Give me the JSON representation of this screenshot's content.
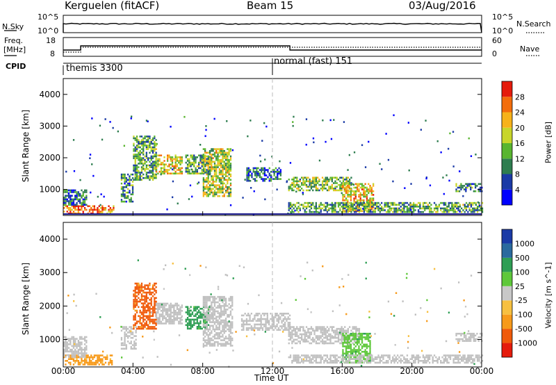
{
  "header": {
    "station": "Kerguelen (fitACF)",
    "beam": "Beam 15",
    "date": "03/Aug/2016"
  },
  "noise_panel": {
    "left_label": "N.Sky",
    "right_label": "N.Search",
    "left_ticks": [
      "10^5",
      "10^0"
    ],
    "right_ticks": [
      "10^5",
      "10^0"
    ]
  },
  "freq_panel": {
    "left_label_1": "Freq.",
    "left_label_2": "[MHz]",
    "right_label": "Nave",
    "left_ticks": [
      "18",
      "8"
    ],
    "right_ticks": [
      "60",
      "0"
    ]
  },
  "cpid_panel": {
    "label": "CPID",
    "modes": [
      "themis 3300",
      "normal (fast) 151"
    ]
  },
  "colors": {
    "power_scale": [
      "#0000ff",
      "#1a3aa6",
      "#2e7d4f",
      "#59b530",
      "#c8d62a",
      "#f7b21a",
      "#f36d0c",
      "#e51b0c"
    ],
    "velocity_scale": [
      "#e51b0c",
      "#f05a0a",
      "#f79a1a",
      "#f7c040",
      "#c8c8c8",
      "#5ec83a",
      "#2e9e54",
      "#2a6a9e",
      "#1a3aa6"
    ],
    "ground_scatter": "#c0c0c0"
  },
  "chart_data": [
    {
      "type": "heatmap",
      "title": "Power",
      "xlabel": "",
      "ylabel": "Slant Range [km]",
      "x_range_hours": [
        0,
        24
      ],
      "ylim": [
        180,
        4500
      ],
      "yticks": [
        "1000",
        "2000",
        "3000",
        "4000"
      ],
      "colorbar": {
        "label": "Power [dB]",
        "ticks": [
          "4",
          "8",
          "12",
          "16",
          "20",
          "24",
          "28"
        ],
        "range": [
          0,
          30
        ]
      },
      "features": [
        {
          "x": [
            0.0,
            2.9
          ],
          "y": [
            250,
            500
          ],
          "value": 24
        },
        {
          "x": [
            0.0,
            1.3
          ],
          "y": [
            500,
            1000
          ],
          "value": 8
        },
        {
          "x": [
            3.3,
            4.0
          ],
          "y": [
            600,
            1500
          ],
          "value": 10
        },
        {
          "x": [
            4.0,
            5.3
          ],
          "y": [
            1300,
            2700
          ],
          "value": 12
        },
        {
          "x": [
            5.3,
            6.8
          ],
          "y": [
            1500,
            2100
          ],
          "value": 18
        },
        {
          "x": [
            7.0,
            8.4
          ],
          "y": [
            1500,
            2100
          ],
          "value": 12
        },
        {
          "x": [
            8.0,
            9.6
          ],
          "y": [
            800,
            2300
          ],
          "value": 16
        },
        {
          "x": [
            10.5,
            12.5
          ],
          "y": [
            1300,
            1700
          ],
          "value": 8
        },
        {
          "x": [
            12.9,
            16.5
          ],
          "y": [
            1000,
            1400
          ],
          "value": 14
        },
        {
          "x": [
            16.0,
            17.8
          ],
          "y": [
            300,
            1200
          ],
          "value": 20
        },
        {
          "x": [
            12.9,
            24.0
          ],
          "y": [
            280,
            600
          ],
          "value": 12
        },
        {
          "x": [
            22.5,
            24.0
          ],
          "y": [
            950,
            1200
          ],
          "value": 10
        }
      ]
    },
    {
      "type": "heatmap",
      "title": "Velocity",
      "xlabel": "Time UT",
      "ylabel": "Slant Range [km]",
      "x_range_hours": [
        0,
        24
      ],
      "ylim": [
        180,
        4500
      ],
      "xticks": [
        "00:00",
        "04:00",
        "08:00",
        "12:00",
        "16:00",
        "20:00",
        "00:00"
      ],
      "yticks": [
        "1000",
        "2000",
        "3000",
        "4000"
      ],
      "colorbar": {
        "label": "Velocity [m s^-1]",
        "ticks": [
          "-1000",
          "-500",
          "-100",
          "-25",
          "25",
          "100",
          "500",
          "1000"
        ],
        "range": [
          -1200,
          1200
        ]
      },
      "features": [
        {
          "x": [
            0.0,
            2.8
          ],
          "y": [
            250,
            550
          ],
          "value": -120
        },
        {
          "x": [
            0.0,
            1.3
          ],
          "y": [
            500,
            1100
          ],
          "value": "ground"
        },
        {
          "x": [
            3.3,
            4.2
          ],
          "y": [
            700,
            1400
          ],
          "value": "ground"
        },
        {
          "x": [
            4.0,
            5.3
          ],
          "y": [
            1300,
            2700
          ],
          "value": -600
        },
        {
          "x": [
            5.3,
            6.8
          ],
          "y": [
            1500,
            2100
          ],
          "value": "ground"
        },
        {
          "x": [
            7.0,
            8.3
          ],
          "y": [
            1300,
            2000
          ],
          "value": 120
        },
        {
          "x": [
            8.0,
            9.7
          ],
          "y": [
            800,
            2300
          ],
          "value": "ground"
        },
        {
          "x": [
            10.2,
            13.0
          ],
          "y": [
            1300,
            1800
          ],
          "value": "ground"
        },
        {
          "x": [
            12.9,
            17.0
          ],
          "y": [
            900,
            1400
          ],
          "value": "ground"
        },
        {
          "x": [
            16.0,
            17.6
          ],
          "y": [
            300,
            1200
          ],
          "value": 80
        },
        {
          "x": [
            12.9,
            24.0
          ],
          "y": [
            280,
            550
          ],
          "value": "ground"
        },
        {
          "x": [
            22.5,
            24.0
          ],
          "y": [
            950,
            1200
          ],
          "value": "ground"
        }
      ]
    }
  ]
}
